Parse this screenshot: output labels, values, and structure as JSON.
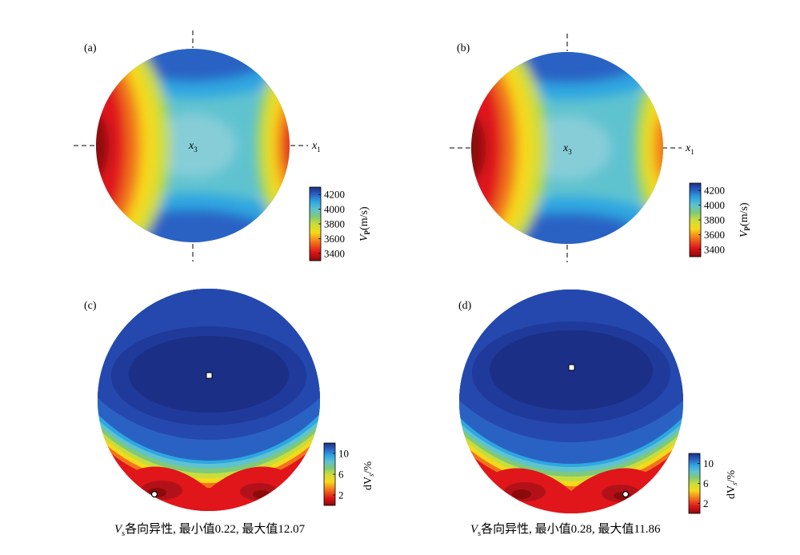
{
  "chart_data": [
    {
      "type": "heatmap",
      "panel_label": "(a)",
      "quantity": "P-wave phase velocity (stereographic projection)",
      "axis_labels": {
        "center": "x",
        "center_sub": "3",
        "right": "x",
        "right_sub": "1"
      },
      "colorbar": {
        "label": "V",
        "label_sub": "P",
        "label_unit": "(m/s)",
        "ticks": [
          "4200",
          "4000",
          "3800",
          "3600",
          "3400"
        ],
        "range": [
          3300,
          4300
        ]
      }
    },
    {
      "type": "heatmap",
      "panel_label": "(b)",
      "quantity": "P-wave phase velocity (stereographic projection)",
      "axis_labels": {
        "center": "x",
        "center_sub": "3",
        "right": "x",
        "right_sub": "1"
      },
      "colorbar": {
        "label": "V",
        "label_sub": "P",
        "label_unit": "(m/s)",
        "ticks": [
          "4200",
          "4000",
          "3800",
          "3600",
          "3400"
        ],
        "range": [
          3300,
          4300
        ]
      }
    },
    {
      "type": "heatmap",
      "panel_label": "(c)",
      "quantity": "S-wave anisotropy",
      "colorbar": {
        "label": "dV",
        "label_sub": "s",
        "label_unit": "/%",
        "ticks": [
          "10",
          "6",
          "2"
        ],
        "range": [
          0,
          12
        ]
      },
      "min_marker": "square",
      "max_marker": "circle",
      "caption": {
        "symbol": "V",
        "symbol_sub": "s",
        "text": "各向异性, 最小值0.22, 最大值12.07"
      },
      "min": 0.22,
      "max": 12.07
    },
    {
      "type": "heatmap",
      "panel_label": "(d)",
      "quantity": "S-wave anisotropy",
      "colorbar": {
        "label": "dV",
        "label_sub": "s",
        "label_unit": "/%",
        "ticks": [
          "10",
          "6",
          "2"
        ],
        "range": [
          0,
          12
        ]
      },
      "min_marker": "square",
      "max_marker": "circle",
      "caption": {
        "symbol": "V",
        "symbol_sub": "s",
        "text": "各向异性, 最小值0.28, 最大值11.86"
      },
      "min": 0.28,
      "max": 11.86
    }
  ],
  "colors": {
    "scale": [
      "#8b0a0a",
      "#e0161a",
      "#f2731c",
      "#f7d91a",
      "#c8dd3c",
      "#7ec97a",
      "#5fc3cf",
      "#2ea6e2",
      "#2a62c4",
      "#1c2f86"
    ],
    "axis_dash": "#808080",
    "marker_fill": "#ffffff",
    "marker_stroke": "#000000"
  }
}
